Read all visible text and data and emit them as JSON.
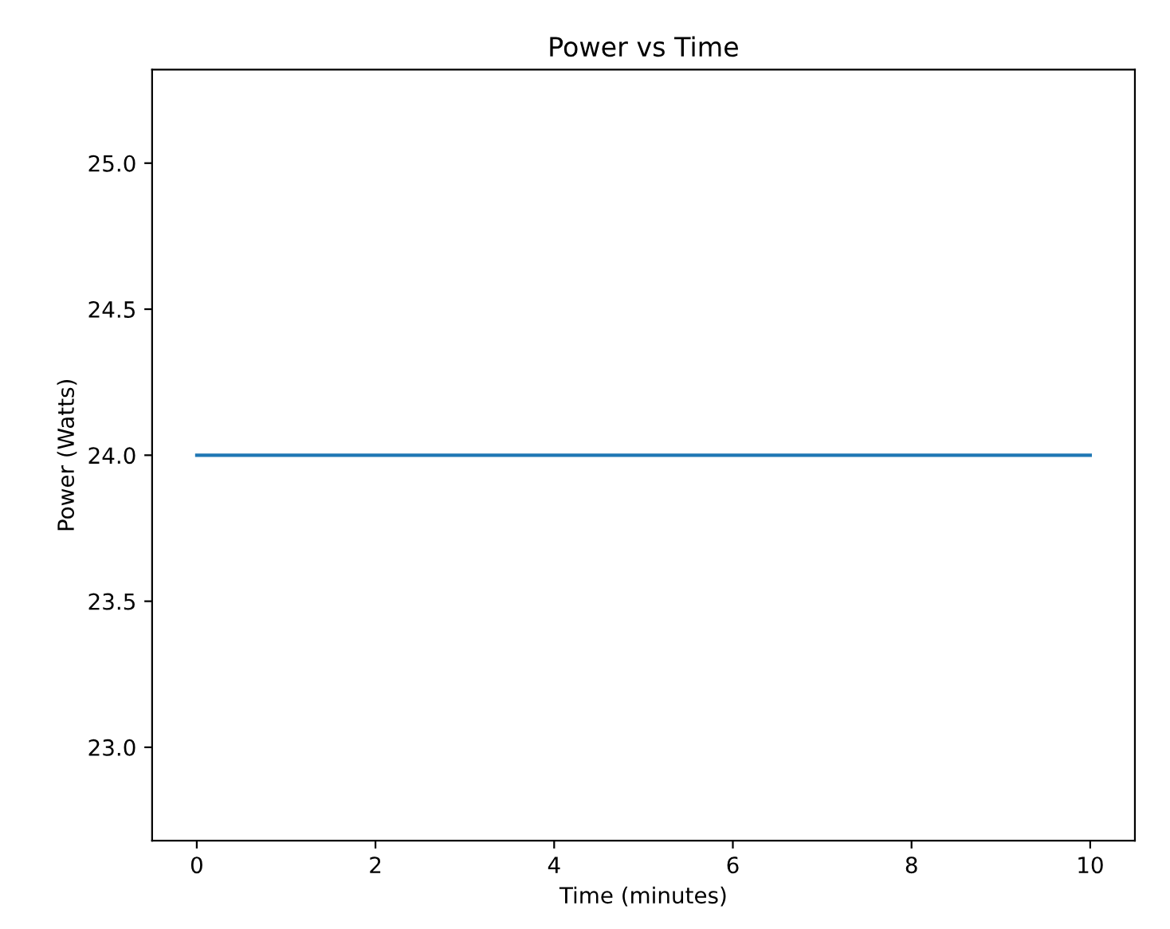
{
  "chart_data": {
    "type": "line",
    "title": "Power vs Time",
    "xlabel": "Time (minutes)",
    "ylabel": "Power (Watts)",
    "x": [
      0,
      10
    ],
    "series": [
      {
        "color": "#1f77b4",
        "values": [
          24,
          24
        ]
      }
    ],
    "xlim": [
      -0.5,
      10.5
    ],
    "ylim": [
      22.68,
      25.32
    ],
    "xticks": [
      0,
      2,
      4,
      6,
      8,
      10
    ],
    "yticks": [
      {
        "value": 23,
        "label": "23.0"
      },
      {
        "value": 23.5,
        "label": "23.5"
      },
      {
        "value": 24,
        "label": "24.0"
      },
      {
        "value": 24.5,
        "label": "24.5"
      },
      {
        "value": 25,
        "label": "25.0"
      }
    ],
    "grid": false,
    "legend": false
  }
}
